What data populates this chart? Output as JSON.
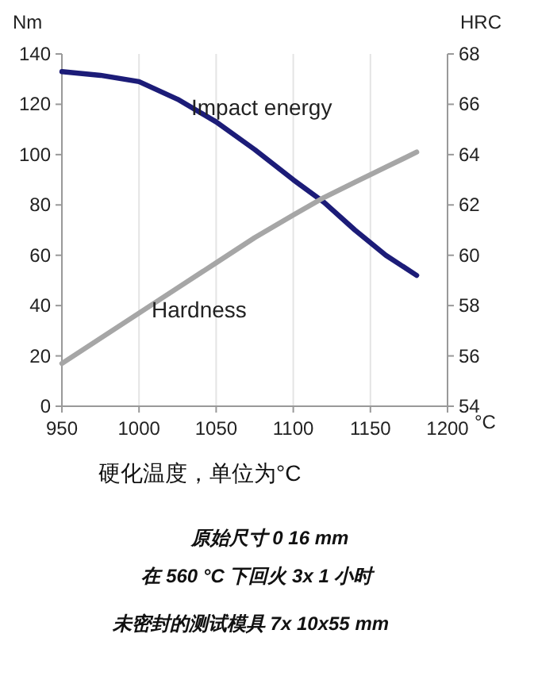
{
  "chart_data": {
    "type": "line",
    "xlabel": "°C",
    "ylabel": "Nm",
    "y2label": "HRC",
    "x": [
      950,
      975,
      1000,
      1025,
      1050,
      1075,
      1100,
      1120,
      1140,
      1160,
      1180
    ],
    "series": [
      {
        "name": "Impact energy",
        "color": "#1c1c78",
        "values": [
          133,
          131.5,
          129,
          122,
          113,
          102,
          90,
          81,
          70,
          60,
          52
        ]
      },
      {
        "name": "Hardness",
        "color": "#a6a6a6",
        "axis": "y2",
        "values": [
          55.7,
          56.7,
          57.7,
          58.7,
          59.7,
          60.7,
          61.6,
          62.3,
          62.9,
          63.5,
          64.1
        ]
      }
    ],
    "xlim": [
      950,
      1200
    ],
    "xticks": [
      950,
      1000,
      1050,
      1100,
      1150,
      1200
    ],
    "ylim": [
      0,
      140
    ],
    "yticks": [
      0,
      20,
      40,
      60,
      80,
      100,
      120,
      140
    ],
    "y2lim": [
      54,
      68
    ],
    "y2ticks": [
      54,
      56,
      58,
      60,
      62,
      64,
      66,
      68
    ],
    "grid": "x",
    "legend": false,
    "marker": "none",
    "line_style": "solid",
    "annotations": [
      "硬化温度，单位为°C",
      "原始尺寸 0 16 mm",
      "在 560 °C 下回火 3x 1 小时",
      "未密封的测试模具 7x 10x55 mm"
    ]
  }
}
